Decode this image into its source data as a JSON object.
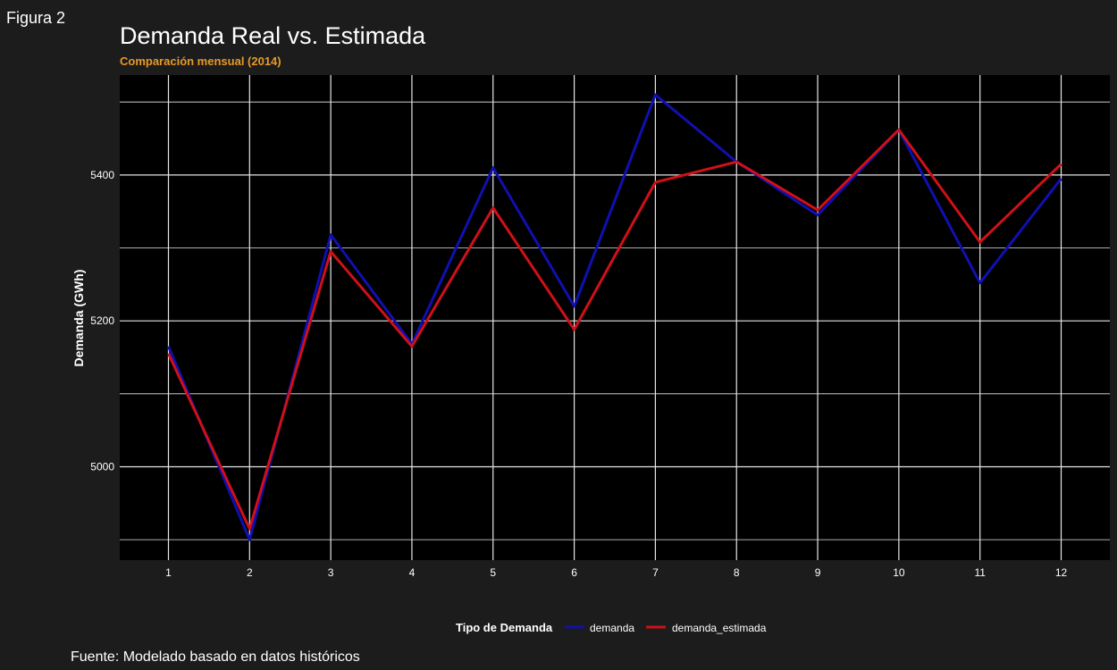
{
  "figure_label": "Figura 2",
  "caption": "Fuente: Modelado basado en datos históricos",
  "colors": {
    "page_bg": "#1c1c1c",
    "panel_bg": "#000000",
    "grid": "#e6e6e6",
    "subtitle": "#e69a28",
    "demanda": "#1010b0",
    "demanda_estimada": "#d01018"
  },
  "chart_data": {
    "type": "line",
    "title": "Demanda Real vs. Estimada",
    "subtitle": "Comparación mensual (2014)",
    "xlabel": "",
    "ylabel": "Demanda (GWh)",
    "x": [
      1,
      2,
      3,
      4,
      5,
      6,
      7,
      8,
      9,
      10,
      11,
      12
    ],
    "x_ticks": [
      "1",
      "2",
      "3",
      "4",
      "5",
      "6",
      "7",
      "8",
      "9",
      "10",
      "11",
      "12"
    ],
    "xlim": [
      0.4,
      12.6
    ],
    "y_ticks": [
      5000,
      5200,
      5400
    ],
    "y_ticks_minor": [
      4900,
      5100,
      5300,
      5500
    ],
    "ylim": [
      4872,
      5537
    ],
    "grid": true,
    "legend_title": "Tipo de Demanda",
    "legend_position": "bottom",
    "series": [
      {
        "name": "demanda",
        "color": "#1010b0",
        "values": [
          5165,
          4900,
          5318,
          5168,
          5410,
          5220,
          5510,
          5418,
          5345,
          5462,
          5252,
          5395
        ]
      },
      {
        "name": "demanda_estimada",
        "color": "#d01018",
        "values": [
          5155,
          4915,
          5295,
          5165,
          5355,
          5188,
          5390,
          5418,
          5352,
          5462,
          5308,
          5415
        ]
      }
    ]
  }
}
